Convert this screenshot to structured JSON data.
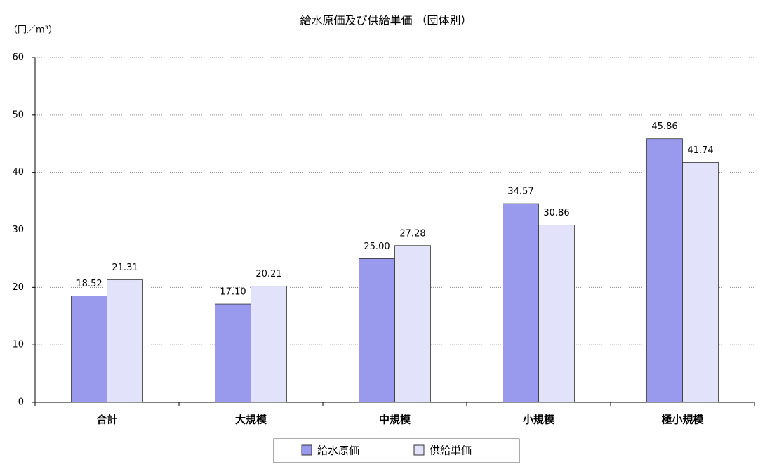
{
  "chart_data": {
    "type": "bar",
    "title": "給水原価及び供給単価 （団体別）",
    "y_label": "（円／m³）",
    "categories": [
      "合計",
      "大規模",
      "中規模",
      "小規模",
      "極小規模"
    ],
    "series": [
      {
        "name": "給水原価",
        "color": "#9999ee",
        "values": [
          18.52,
          17.1,
          25.0,
          34.57,
          45.86
        ],
        "value_labels": [
          "18.52",
          "17.10",
          "25.00",
          "34.57",
          "45.86"
        ]
      },
      {
        "name": "供給単価",
        "color": "#e2e2fa",
        "values": [
          21.31,
          20.21,
          27.28,
          30.86,
          41.74
        ],
        "value_labels": [
          "21.31",
          "20.21",
          "27.28",
          "30.86",
          "41.74"
        ]
      }
    ],
    "ylim": [
      0,
      60
    ],
    "yticks": [
      0,
      10,
      20,
      30,
      40,
      50,
      60
    ],
    "grid": true
  }
}
